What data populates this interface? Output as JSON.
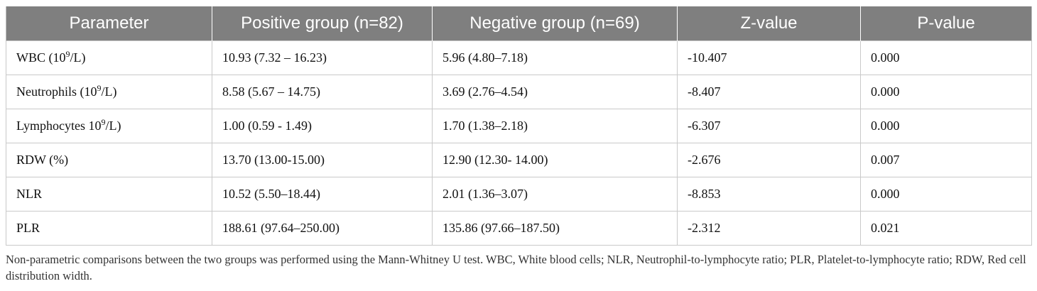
{
  "table": {
    "headers": [
      "Parameter",
      "Positive group (n=82)",
      "Negative group (n=69)",
      "Z-value",
      "P-value"
    ],
    "rows": [
      {
        "param_pre": "WBC (10",
        "param_sup": "9",
        "param_post": "/L)",
        "positive": "10.93 (7.32 – 16.23)",
        "negative": "5.96 (4.80–7.18)",
        "z": "-10.407",
        "p": "0.000"
      },
      {
        "param_pre": "Neutrophils (10",
        "param_sup": "9",
        "param_post": "/L)",
        "positive": "8.58 (5.67 – 14.75)",
        "negative": "3.69 (2.76–4.54)",
        "z": "-8.407",
        "p": "0.000"
      },
      {
        "param_pre": "Lymphocytes 10",
        "param_sup": "9",
        "param_post": "/L)",
        "positive": "1.00 (0.59 - 1.49)",
        "negative": "1.70 (1.38–2.18)",
        "z": "-6.307",
        "p": "0.000"
      },
      {
        "param_pre": "RDW (%)",
        "param_sup": "",
        "param_post": "",
        "positive": "13.70 (13.00-15.00)",
        "negative": "12.90 (12.30- 14.00)",
        "z": "-2.676",
        "p": "0.007"
      },
      {
        "param_pre": "NLR",
        "param_sup": "",
        "param_post": "",
        "positive": "10.52 (5.50–18.44)",
        "negative": "2.01 (1.36–3.07)",
        "z": "-8.853",
        "p": "0.000"
      },
      {
        "param_pre": "PLR",
        "param_sup": "",
        "param_post": "",
        "positive": "188.61 (97.64–250.00)",
        "negative": "135.86 (97.66–187.50)",
        "z": "-2.312",
        "p": "0.021"
      }
    ]
  },
  "footnote": "Non-parametric comparisons between the two groups was performed using the Mann-Whitney U test. WBC, White blood cells; NLR, Neutrophil-to-lymphocyte ratio; PLR, Platelet-to-lymphocyte ratio; RDW, Red cell distribution width.",
  "colors": {
    "header_bg": "#7f7f7f",
    "header_text": "#ffffff",
    "grid": "#c9c9c9"
  }
}
